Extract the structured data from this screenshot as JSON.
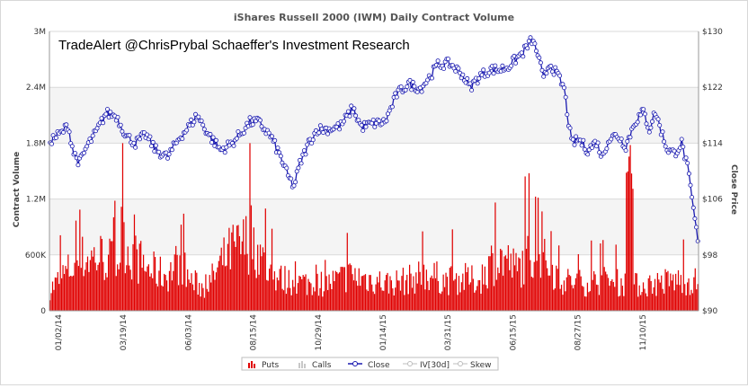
{
  "chart_data": {
    "type": "bar",
    "title": "iShares Russell 2000 (IWM) Daily Contract Volume",
    "watermark": "TradeAlert  @ChrisPrybal   Schaeffer's Investment Research",
    "xlabel": "",
    "ylabel": "Contract Volume",
    "y2label": "Close Price",
    "ylim": [
      0,
      3000000
    ],
    "y2lim": [
      90,
      130
    ],
    "yticks": [
      "0",
      "600K",
      "1.2M",
      "1.8M",
      "2.4M",
      "3M"
    ],
    "y2ticks": [
      "$90",
      "$98",
      "$106",
      "$114",
      "$122",
      "$130"
    ],
    "xticks": [
      "01/02/14",
      "03/19/14",
      "06/03/14",
      "08/15/14",
      "10/29/14",
      "01/14/15",
      "03/31/15",
      "06/15/15",
      "08/27/15",
      "11/10/15"
    ],
    "legend": [
      "Puts",
      "Calls",
      "Close",
      "IV[30d]",
      "Skew"
    ],
    "colors": {
      "puts": "#e00000",
      "calls": "#c8c8c8",
      "close": "#1a1ab0",
      "band": "#f4f4f4",
      "grid": "#d9d9d9"
    },
    "puts_key": [
      [
        0,
        250000
      ],
      [
        12,
        450000
      ],
      [
        25,
        620000
      ],
      [
        40,
        650000
      ],
      [
        52,
        560000
      ],
      [
        56,
        1000000
      ],
      [
        60,
        720000
      ],
      [
        75,
        500000
      ],
      [
        90,
        420000
      ],
      [
        100,
        600000
      ],
      [
        108,
        360000
      ],
      [
        120,
        260000
      ],
      [
        132,
        560000
      ],
      [
        140,
        720000
      ],
      [
        148,
        760000
      ],
      [
        155,
        900000
      ],
      [
        162,
        650000
      ],
      [
        170,
        420000
      ],
      [
        185,
        350000
      ],
      [
        200,
        330000
      ],
      [
        215,
        330000
      ],
      [
        230,
        420000
      ],
      [
        245,
        380000
      ],
      [
        260,
        330000
      ],
      [
        275,
        360000
      ],
      [
        290,
        440000
      ],
      [
        305,
        360000
      ],
      [
        320,
        380000
      ],
      [
        330,
        350000
      ],
      [
        340,
        580000
      ],
      [
        350,
        620000
      ],
      [
        360,
        480000
      ],
      [
        370,
        700000
      ],
      [
        380,
        600000
      ],
      [
        395,
        360000
      ],
      [
        410,
        330000
      ],
      [
        425,
        360000
      ],
      [
        440,
        330000
      ],
      [
        455,
        300000
      ],
      [
        480,
        360000
      ],
      [
        495,
        350000
      ]
    ],
    "close_key": [
      [
        0,
        114.4
      ],
      [
        8,
        115.5
      ],
      [
        12,
        116.6
      ],
      [
        16,
        112.6
      ],
      [
        20,
        111.2
      ],
      [
        25,
        113.5
      ],
      [
        32,
        115.8
      ],
      [
        38,
        118.3
      ],
      [
        45,
        117.9
      ],
      [
        52,
        115.0
      ],
      [
        58,
        114.0
      ],
      [
        65,
        115.2
      ],
      [
        72,
        113.0
      ],
      [
        80,
        112.0
      ],
      [
        88,
        114.8
      ],
      [
        95,
        116.5
      ],
      [
        100,
        118.0
      ],
      [
        108,
        115.2
      ],
      [
        116,
        113.0
      ],
      [
        124,
        114.0
      ],
      [
        130,
        115.5
      ],
      [
        136,
        117.0
      ],
      [
        142,
        117.0
      ],
      [
        150,
        115.0
      ],
      [
        157,
        112.0
      ],
      [
        162,
        109.2
      ],
      [
        166,
        107.8
      ],
      [
        170,
        111.0
      ],
      [
        176,
        114.0
      ],
      [
        182,
        116.0
      ],
      [
        190,
        116.0
      ],
      [
        198,
        116.5
      ],
      [
        206,
        119.0
      ],
      [
        212,
        116.3
      ],
      [
        220,
        116.8
      ],
      [
        228,
        117.0
      ],
      [
        236,
        121.0
      ],
      [
        244,
        122.5
      ],
      [
        252,
        121.8
      ],
      [
        258,
        123.4
      ],
      [
        264,
        125.2
      ],
      [
        272,
        125.4
      ],
      [
        280,
        124.0
      ],
      [
        286,
        122.0
      ],
      [
        292,
        123.5
      ],
      [
        300,
        124.6
      ],
      [
        306,
        124.5
      ],
      [
        312,
        125.0
      ],
      [
        318,
        126.2
      ],
      [
        322,
        127.0
      ],
      [
        328,
        128.8
      ],
      [
        332,
        126.8
      ],
      [
        336,
        123.0
      ],
      [
        340,
        125.5
      ],
      [
        346,
        123.5
      ],
      [
        350,
        121.8
      ],
      [
        352,
        118.5
      ],
      [
        355,
        114.0
      ],
      [
        360,
        114.5
      ],
      [
        366,
        113.0
      ],
      [
        372,
        114.2
      ],
      [
        376,
        112.0
      ],
      [
        380,
        114.5
      ],
      [
        386,
        115.2
      ],
      [
        392,
        113.6
      ],
      [
        398,
        117.0
      ],
      [
        404,
        118.5
      ],
      [
        408,
        116.0
      ],
      [
        412,
        118.5
      ],
      [
        416,
        115.8
      ],
      [
        420,
        113.2
      ],
      [
        425,
        112.5
      ],
      [
        430,
        114.0
      ],
      [
        434,
        110.5
      ],
      [
        437,
        106.0
      ],
      [
        440,
        101.5
      ],
      [
        441,
        100.0
      ]
    ]
  }
}
